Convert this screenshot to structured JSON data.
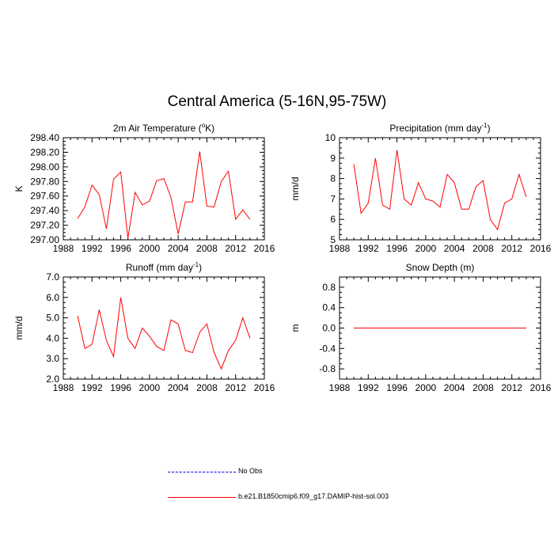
{
  "title": "Central America (5-16N,95-75W)",
  "colors": {
    "model": "#ff0000",
    "obs": "#0000ff",
    "axis": "#000000"
  },
  "legend": {
    "obs": "No Obs",
    "model": "b.e21.B1850cmip6.f09_g17.DAMIP-hist-sol.003"
  },
  "chart_data": [
    {
      "type": "line",
      "title": "2m Air Temperature (",
      "title_sup": "o",
      "title_tail": "K)",
      "ylabel": "K",
      "xlim": [
        1988,
        2016
      ],
      "ylim": [
        297.0,
        298.4
      ],
      "xticks": [
        "1988",
        "1992",
        "1996",
        "2000",
        "2004",
        "2008",
        "2012",
        "2016"
      ],
      "yticks": [
        "297.00",
        "297.20",
        "297.40",
        "297.60",
        "297.80",
        "298.00",
        "298.20",
        "298.40"
      ],
      "x": [
        1990,
        1991,
        1992,
        1993,
        1994,
        1995,
        1996,
        1997,
        1998,
        1999,
        2000,
        2001,
        2002,
        2003,
        2004,
        2005,
        2006,
        2007,
        2008,
        2009,
        2010,
        2011,
        2012,
        2013,
        2014
      ],
      "series": [
        {
          "name": "b.e21.B1850cmip6.f09_g17.DAMIP-hist-sol.003",
          "values": [
            297.29,
            297.45,
            297.75,
            297.62,
            297.15,
            297.83,
            297.93,
            297.02,
            297.65,
            297.48,
            297.53,
            297.81,
            297.84,
            297.58,
            297.08,
            297.52,
            297.52,
            298.21,
            297.46,
            297.45,
            297.8,
            297.94,
            297.28,
            297.41,
            297.28
          ]
        }
      ]
    },
    {
      "type": "line",
      "title": "Precipitation (mm day",
      "title_sup": "-1",
      "title_tail": ")",
      "ylabel": "mm/d",
      "xlim": [
        1988,
        2016
      ],
      "ylim": [
        5,
        10
      ],
      "xticks": [
        "1988",
        "1992",
        "1996",
        "2000",
        "2004",
        "2008",
        "2012",
        "2016"
      ],
      "yticks": [
        "5",
        "6",
        "7",
        "8",
        "9",
        "10"
      ],
      "x": [
        1990,
        1991,
        1992,
        1993,
        1994,
        1995,
        1996,
        1997,
        1998,
        1999,
        2000,
        2001,
        2002,
        2003,
        2004,
        2005,
        2006,
        2007,
        2008,
        2009,
        2010,
        2011,
        2012,
        2013,
        2014
      ],
      "series": [
        {
          "name": "b.e21.B1850cmip6.f09_g17.DAMIP-hist-sol.003",
          "values": [
            8.7,
            6.3,
            6.8,
            9.0,
            6.7,
            6.5,
            9.4,
            7.0,
            6.7,
            7.8,
            7.0,
            6.9,
            6.6,
            8.2,
            7.8,
            6.5,
            6.5,
            7.6,
            7.9,
            6.0,
            5.5,
            6.8,
            7.0,
            8.2,
            7.1
          ]
        }
      ]
    },
    {
      "type": "line",
      "title": "Runoff (mm day",
      "title_sup": "-1",
      "title_tail": ")",
      "ylabel": "mm/d",
      "xlim": [
        1988,
        2016
      ],
      "ylim": [
        2.0,
        7.0
      ],
      "xticks": [
        "1988",
        "1992",
        "1996",
        "2000",
        "2004",
        "2008",
        "2012",
        "2016"
      ],
      "yticks": [
        "2.0",
        "3.0",
        "4.0",
        "5.0",
        "6.0",
        "7.0"
      ],
      "x": [
        1990,
        1991,
        1992,
        1993,
        1994,
        1995,
        1996,
        1997,
        1998,
        1999,
        2000,
        2001,
        2002,
        2003,
        2004,
        2005,
        2006,
        2007,
        2008,
        2009,
        2010,
        2011,
        2012,
        2013,
        2014
      ],
      "series": [
        {
          "name": "b.e21.B1850cmip6.f09_g17.DAMIP-hist-sol.003",
          "values": [
            5.1,
            3.5,
            3.7,
            5.4,
            3.9,
            3.1,
            6.0,
            4.0,
            3.5,
            4.5,
            4.1,
            3.6,
            3.4,
            4.9,
            4.7,
            3.4,
            3.3,
            4.3,
            4.7,
            3.3,
            2.5,
            3.4,
            3.9,
            5.0,
            4.0
          ]
        }
      ]
    },
    {
      "type": "line",
      "title": "Snow Depth (m)",
      "title_sup": "",
      "title_tail": "",
      "ylabel": "m",
      "xlim": [
        1988,
        2016
      ],
      "ylim": [
        -1.0,
        1.0
      ],
      "xticks": [
        "1988",
        "1992",
        "1996",
        "2000",
        "2004",
        "2008",
        "2012",
        "2016"
      ],
      "yticks": [
        "-0.8",
        "-0.4",
        "0.0",
        "0.4",
        "0.8"
      ],
      "ytick_values": [
        -0.8,
        -0.4,
        0.0,
        0.4,
        0.8
      ],
      "x": [
        1990,
        1991,
        1992,
        1993,
        1994,
        1995,
        1996,
        1997,
        1998,
        1999,
        2000,
        2001,
        2002,
        2003,
        2004,
        2005,
        2006,
        2007,
        2008,
        2009,
        2010,
        2011,
        2012,
        2013,
        2014
      ],
      "series": [
        {
          "name": "b.e21.B1850cmip6.f09_g17.DAMIP-hist-sol.003",
          "values": [
            0,
            0,
            0,
            0,
            0,
            0,
            0,
            0,
            0,
            0,
            0,
            0,
            0,
            0,
            0,
            0,
            0,
            0,
            0,
            0,
            0,
            0,
            0,
            0,
            0
          ]
        }
      ]
    }
  ]
}
